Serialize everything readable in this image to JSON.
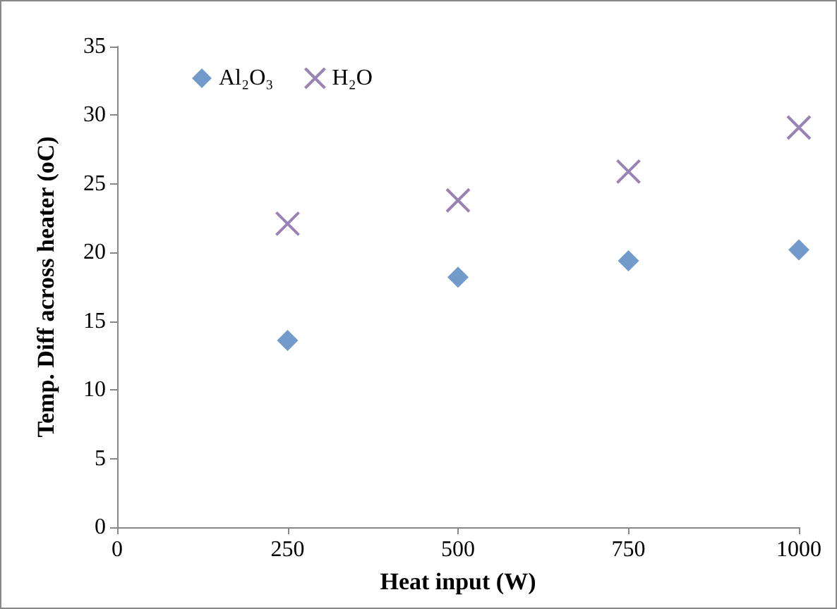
{
  "chart_data": {
    "type": "scatter",
    "xlabel": "Heat input (W)",
    "ylabel": "Temp. Diff across heater (oC)",
    "x": [
      250,
      500,
      750,
      1000
    ],
    "series": [
      {
        "name": "Al₂O₃",
        "color": "#4f81bd",
        "marker": "diamond",
        "values": [
          13.6,
          18.2,
          19.4,
          20.2
        ]
      },
      {
        "name": "H₂O",
        "color": "#8064a2",
        "marker": "cross",
        "values": [
          22.1,
          23.8,
          25.9,
          29.1
        ]
      }
    ],
    "xlim": [
      0,
      1000
    ],
    "xticks": [
      0,
      250,
      500,
      750,
      1000
    ],
    "ylim": [
      0,
      35
    ],
    "yticks": [
      0,
      5,
      10,
      15,
      20,
      25,
      30,
      35
    ],
    "grid": false,
    "legend": "top left"
  }
}
